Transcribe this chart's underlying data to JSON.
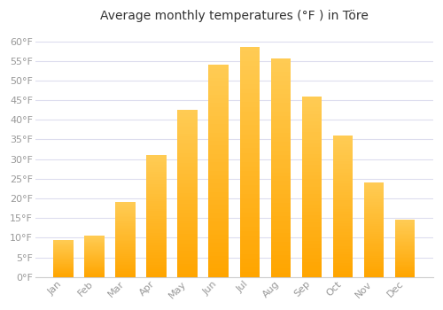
{
  "title": "Average monthly temperatures (°F ) in Töre",
  "months": [
    "Jan",
    "Feb",
    "Mar",
    "Apr",
    "May",
    "Jun",
    "Jul",
    "Aug",
    "Sep",
    "Oct",
    "Nov",
    "Dec"
  ],
  "values": [
    9.5,
    10.5,
    19.0,
    31.0,
    42.5,
    54.0,
    58.5,
    55.5,
    46.0,
    36.0,
    24.0,
    14.5
  ],
  "bar_color_light": "#FFCC44",
  "bar_color_dark": "#FFA500",
  "background_color": "#FFFFFF",
  "plot_background": "#FFFFFF",
  "grid_color": "#DDDDEE",
  "ylim": [
    0,
    63
  ],
  "yticks": [
    0,
    5,
    10,
    15,
    20,
    25,
    30,
    35,
    40,
    45,
    50,
    55,
    60
  ],
  "title_fontsize": 10,
  "tick_fontsize": 8,
  "tick_color": "#999999",
  "bar_width": 0.65
}
